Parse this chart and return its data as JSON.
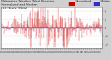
{
  "norm_color": "#cc0000",
  "med_color": "#3333cc",
  "background_color": "#d0d0d0",
  "plot_bg_color": "#ffffff",
  "grid_color": "#aaaaaa",
  "n_points": 288,
  "y_min": -5,
  "y_max": 5,
  "y_ticks": [
    -4,
    -2,
    0,
    2,
    4
  ],
  "title_fontsize": 3.2,
  "tick_fontsize": 2.5,
  "legend_fontsize": 3.0,
  "legend_norm_label": "Normalized",
  "legend_med_label": "Median"
}
